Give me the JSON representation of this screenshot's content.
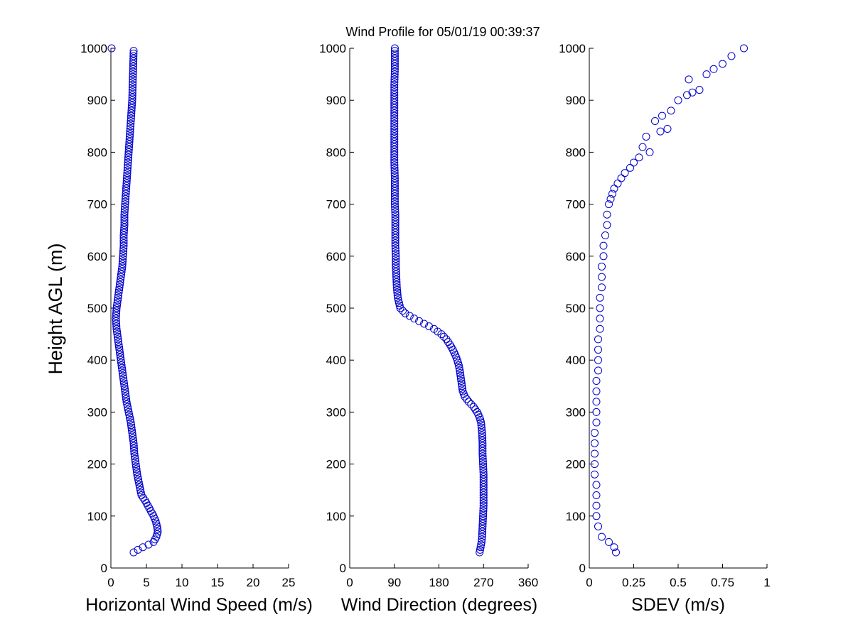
{
  "title": "Wind Profile for  05/01/19 00:39:37",
  "ylabel": "Height AGL (m)",
  "colors": {
    "marker": "#0000cc",
    "axis": "#000000",
    "background": "#ffffff"
  },
  "chart_data": [
    {
      "id": "speed",
      "type": "scatter",
      "marker": "circle-open",
      "xlabel": "Horizontal Wind Speed (m/s)",
      "ylabel": "Height AGL (m)",
      "xlim": [
        0,
        25
      ],
      "ylim": [
        0,
        1000
      ],
      "xticks": [
        0,
        5,
        10,
        15,
        20,
        25
      ],
      "xtick_labels": [
        "0",
        "5",
        "10",
        "15",
        "20",
        "25"
      ],
      "yticks": [
        0,
        100,
        200,
        300,
        400,
        500,
        600,
        700,
        800,
        900,
        1000
      ],
      "ytick_labels": [
        "0",
        "100",
        "200",
        "300",
        "400",
        "500",
        "600",
        "700",
        "800",
        "900",
        "1000"
      ],
      "grid": false,
      "x": [
        3.2,
        3.8,
        4.5,
        5.3,
        6.0,
        6.4,
        6.6,
        6.5,
        6.3,
        6.0,
        5.6,
        5.2,
        4.8,
        4.3,
        4.0,
        3.7,
        3.5,
        3.3,
        3.2,
        3.0,
        2.8,
        2.5,
        2.2,
        2.0,
        1.8,
        1.6,
        1.4,
        1.2,
        1.0,
        0.8,
        0.7,
        0.8,
        1.0,
        1.2,
        1.4,
        1.6,
        1.7,
        1.8,
        1.8,
        1.9,
        1.9,
        2.0,
        2.1,
        2.2,
        2.3,
        2.4,
        2.5,
        2.6,
        2.7,
        2.8,
        2.9,
        3.0,
        3.1,
        3.2
      ],
      "y": [
        30,
        35,
        40,
        45,
        50,
        60,
        70,
        80,
        90,
        100,
        110,
        120,
        130,
        140,
        160,
        180,
        200,
        220,
        240,
        260,
        280,
        300,
        320,
        340,
        360,
        380,
        400,
        420,
        440,
        460,
        480,
        500,
        520,
        540,
        560,
        580,
        600,
        620,
        640,
        660,
        680,
        700,
        720,
        740,
        760,
        780,
        800,
        820,
        840,
        860,
        880,
        900,
        950,
        995
      ],
      "outliers": [
        {
          "x": 0.1,
          "y": 1000
        }
      ]
    },
    {
      "id": "direction",
      "type": "scatter",
      "marker": "circle-open",
      "xlabel": "Wind Direction (degrees)",
      "xlim": [
        0,
        360
      ],
      "ylim": [
        0,
        1000
      ],
      "xticks": [
        0,
        90,
        180,
        270,
        360
      ],
      "xtick_labels": [
        "0",
        "90",
        "180",
        "270",
        "360"
      ],
      "yticks": [
        0,
        100,
        200,
        300,
        400,
        500,
        600,
        700,
        800,
        900,
        1000
      ],
      "ytick_labels": [
        "0",
        "100",
        "200",
        "300",
        "400",
        "500",
        "600",
        "700",
        "800",
        "900",
        "1000"
      ],
      "grid": false,
      "x": [
        262,
        264,
        266,
        267,
        268,
        269,
        270,
        270,
        270,
        269,
        268,
        268,
        267,
        266,
        265,
        262,
        257,
        250,
        240,
        232,
        228,
        225,
        222,
        220,
        217,
        213,
        208,
        202,
        195,
        185,
        170,
        150,
        130,
        112,
        102,
        97,
        95,
        94,
        93,
        93,
        92,
        92,
        92,
        91,
        91,
        91,
        90,
        90,
        90,
        90,
        90,
        90,
        90,
        91,
        91
      ],
      "y": [
        30,
        40,
        50,
        60,
        80,
        100,
        120,
        150,
        180,
        200,
        220,
        240,
        260,
        270,
        280,
        290,
        300,
        310,
        320,
        330,
        340,
        360,
        380,
        390,
        400,
        410,
        420,
        430,
        440,
        450,
        460,
        470,
        480,
        490,
        500,
        520,
        540,
        560,
        580,
        600,
        620,
        650,
        680,
        700,
        720,
        750,
        780,
        800,
        830,
        860,
        880,
        900,
        930,
        960,
        1000
      ]
    },
    {
      "id": "sdev",
      "type": "scatter",
      "marker": "circle-open",
      "xlabel": "SDEV  (m/s)",
      "xlim": [
        0,
        1
      ],
      "ylim": [
        0,
        1000
      ],
      "xticks": [
        0,
        0.25,
        0.5,
        0.75,
        1
      ],
      "xtick_labels": [
        "0",
        "0.25",
        "0.5",
        "0.75",
        "1"
      ],
      "yticks": [
        0,
        100,
        200,
        300,
        400,
        500,
        600,
        700,
        800,
        900,
        1000
      ],
      "ytick_labels": [
        "0",
        "100",
        "200",
        "300",
        "400",
        "500",
        "600",
        "700",
        "800",
        "900",
        "1000"
      ],
      "grid": false,
      "x": [
        0.15,
        0.14,
        0.11,
        0.07,
        0.05,
        0.04,
        0.04,
        0.04,
        0.04,
        0.03,
        0.03,
        0.03,
        0.03,
        0.03,
        0.04,
        0.04,
        0.04,
        0.04,
        0.04,
        0.05,
        0.05,
        0.05,
        0.05,
        0.06,
        0.06,
        0.06,
        0.06,
        0.07,
        0.07,
        0.07,
        0.08,
        0.08,
        0.09,
        0.1,
        0.1,
        0.11,
        0.12,
        0.13,
        0.14,
        0.16,
        0.18,
        0.2,
        0.23,
        0.25,
        0.28,
        0.3,
        0.34,
        0.32,
        0.4,
        0.44,
        0.37,
        0.41,
        0.46,
        0.5,
        0.55,
        0.58,
        0.62,
        0.56,
        0.66,
        0.7,
        0.75,
        0.8,
        0.87
      ],
      "y": [
        30,
        40,
        50,
        60,
        80,
        100,
        120,
        140,
        160,
        180,
        200,
        220,
        240,
        260,
        280,
        300,
        320,
        340,
        360,
        380,
        400,
        420,
        440,
        460,
        480,
        500,
        520,
        540,
        560,
        580,
        600,
        620,
        640,
        660,
        680,
        700,
        710,
        720,
        730,
        740,
        750,
        760,
        770,
        780,
        790,
        810,
        800,
        830,
        840,
        845,
        860,
        870,
        880,
        900,
        910,
        915,
        920,
        940,
        950,
        960,
        970,
        985,
        1000
      ]
    }
  ]
}
